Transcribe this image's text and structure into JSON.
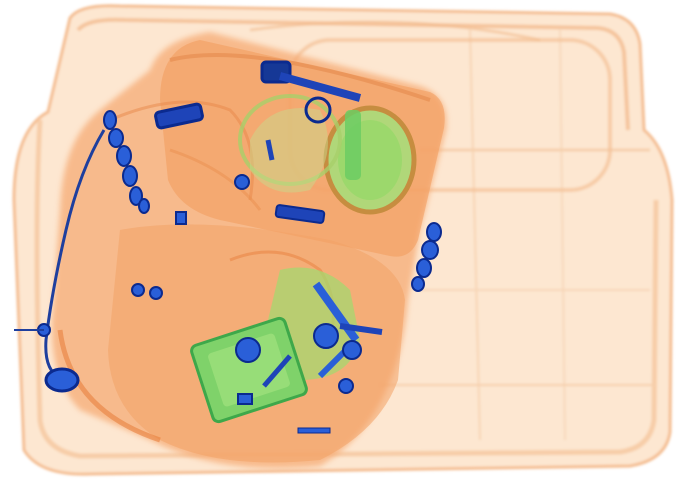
{
  "image": {
    "kind": "x-ray baggage scan",
    "palette": {
      "background": "#ffffff",
      "tray_fill": "#fde3c8",
      "tray_edge": "#f4b98a",
      "bag_fill": "#f6a46a",
      "bag_dark": "#e8803e",
      "organic_green": "#8fd46a",
      "organic_green_dark": "#52b347",
      "metal_blue": "#2a5fd8",
      "metal_blue_dark": "#0b2a8f"
    }
  }
}
